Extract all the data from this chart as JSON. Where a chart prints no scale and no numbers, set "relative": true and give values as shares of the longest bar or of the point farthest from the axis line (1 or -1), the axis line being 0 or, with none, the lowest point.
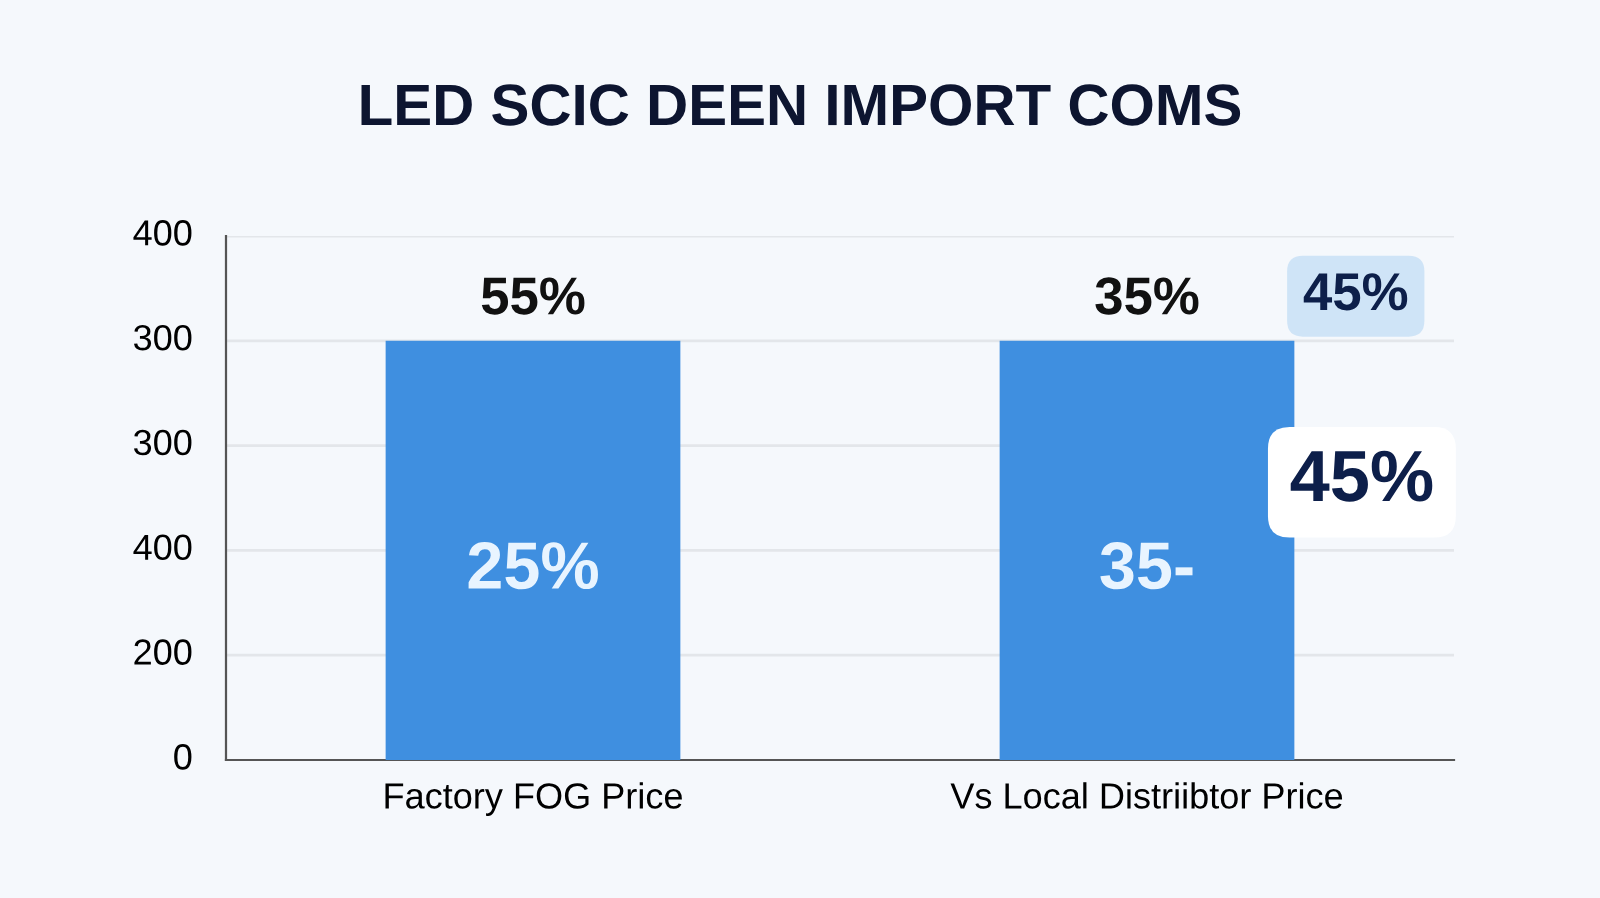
{
  "chart_data": {
    "type": "bar",
    "title": "LED SCIC DEEN IMPORT COMS",
    "categories": [
      "Factory FOG Price",
      "Vs Local Distriibtor Price"
    ],
    "values": [
      1,
      1
    ],
    "relative": true,
    "color": "#3f8fe0",
    "grid": "y",
    "annotations": [
      "400",
      "300",
      "300",
      "400",
      "200",
      "0",
      "55%",
      "35%",
      "25%",
      "35-",
      "45%",
      "45%"
    ]
  }
}
